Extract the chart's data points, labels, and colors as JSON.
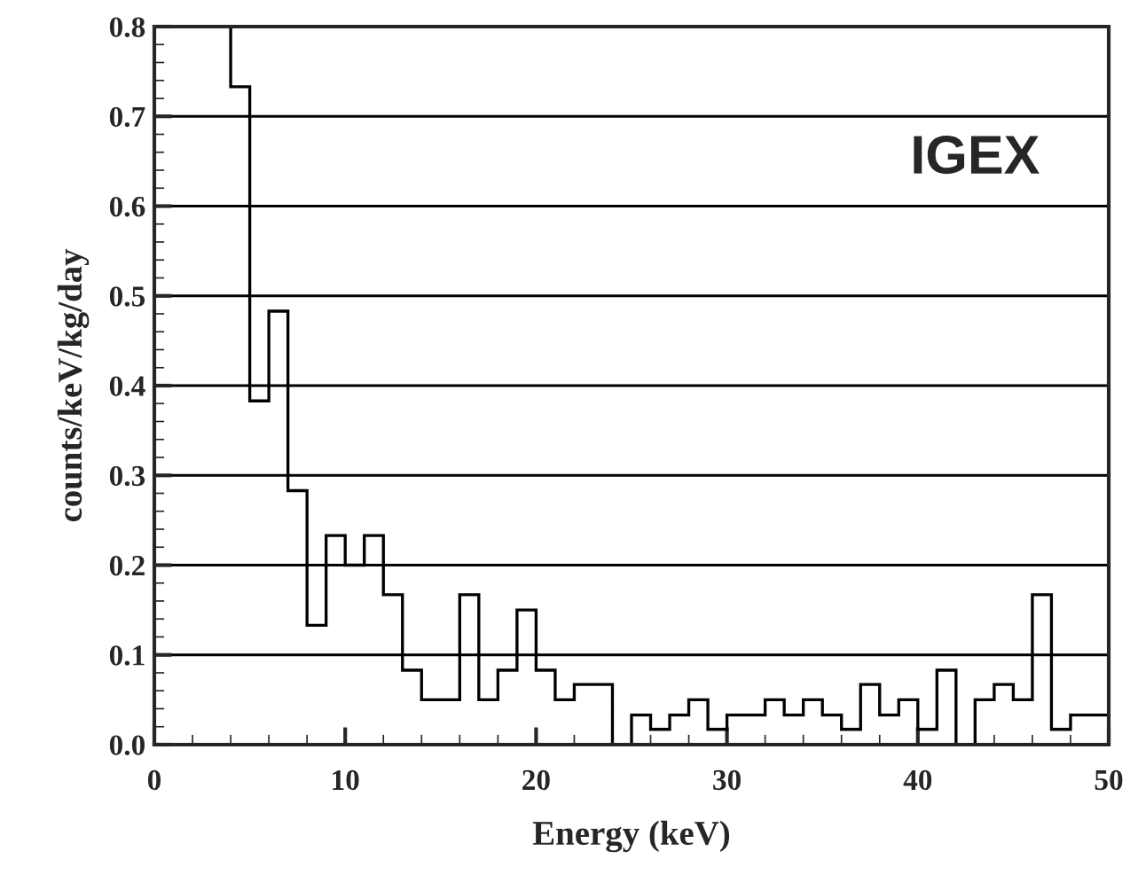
{
  "chart_data": {
    "type": "histogram",
    "xlabel": "Energy (keV)",
    "ylabel": "counts/keV/kg/day",
    "annotations": [
      "IGEX"
    ],
    "bins": [
      3,
      4,
      5,
      6,
      7,
      8,
      9,
      10,
      11,
      12,
      13,
      14,
      15,
      16,
      17,
      18,
      19,
      20,
      21,
      22,
      23,
      24,
      25,
      26,
      27,
      28,
      29,
      30,
      31,
      32,
      33,
      34,
      35,
      36,
      37,
      38,
      39,
      40,
      41,
      42,
      43,
      44,
      45,
      46,
      47,
      48,
      49,
      50
    ],
    "values": [
      0.8,
      0.733,
      0.383,
      0.483,
      0.283,
      0.133,
      0.233,
      0.2,
      0.233,
      0.167,
      0.083,
      0.05,
      0.05,
      0.167,
      0.05,
      0.083,
      0.15,
      0.083,
      0.05,
      0.067,
      0.067,
      0,
      0.033,
      0.017,
      0.033,
      0.05,
      0.017,
      0.033,
      0.033,
      0.05,
      0.033,
      0.05,
      0.033,
      0.017,
      0.067,
      0.033,
      0.05,
      0.017,
      0.083,
      0,
      0.05,
      0.067,
      0.05,
      0.167,
      0.017,
      0.033,
      0.033
    ],
    "color": "#000000",
    "xlim": [
      0,
      50
    ],
    "ylim": [
      0,
      0.8
    ],
    "xticks": [
      0,
      10,
      20,
      30,
      40,
      50
    ],
    "yticks": [
      {
        "value": 0,
        "label": "0.0"
      },
      0.1,
      0.2,
      0.3,
      0.4,
      0.5,
      0.6,
      0.7,
      0.8
    ],
    "grid": "y"
  }
}
